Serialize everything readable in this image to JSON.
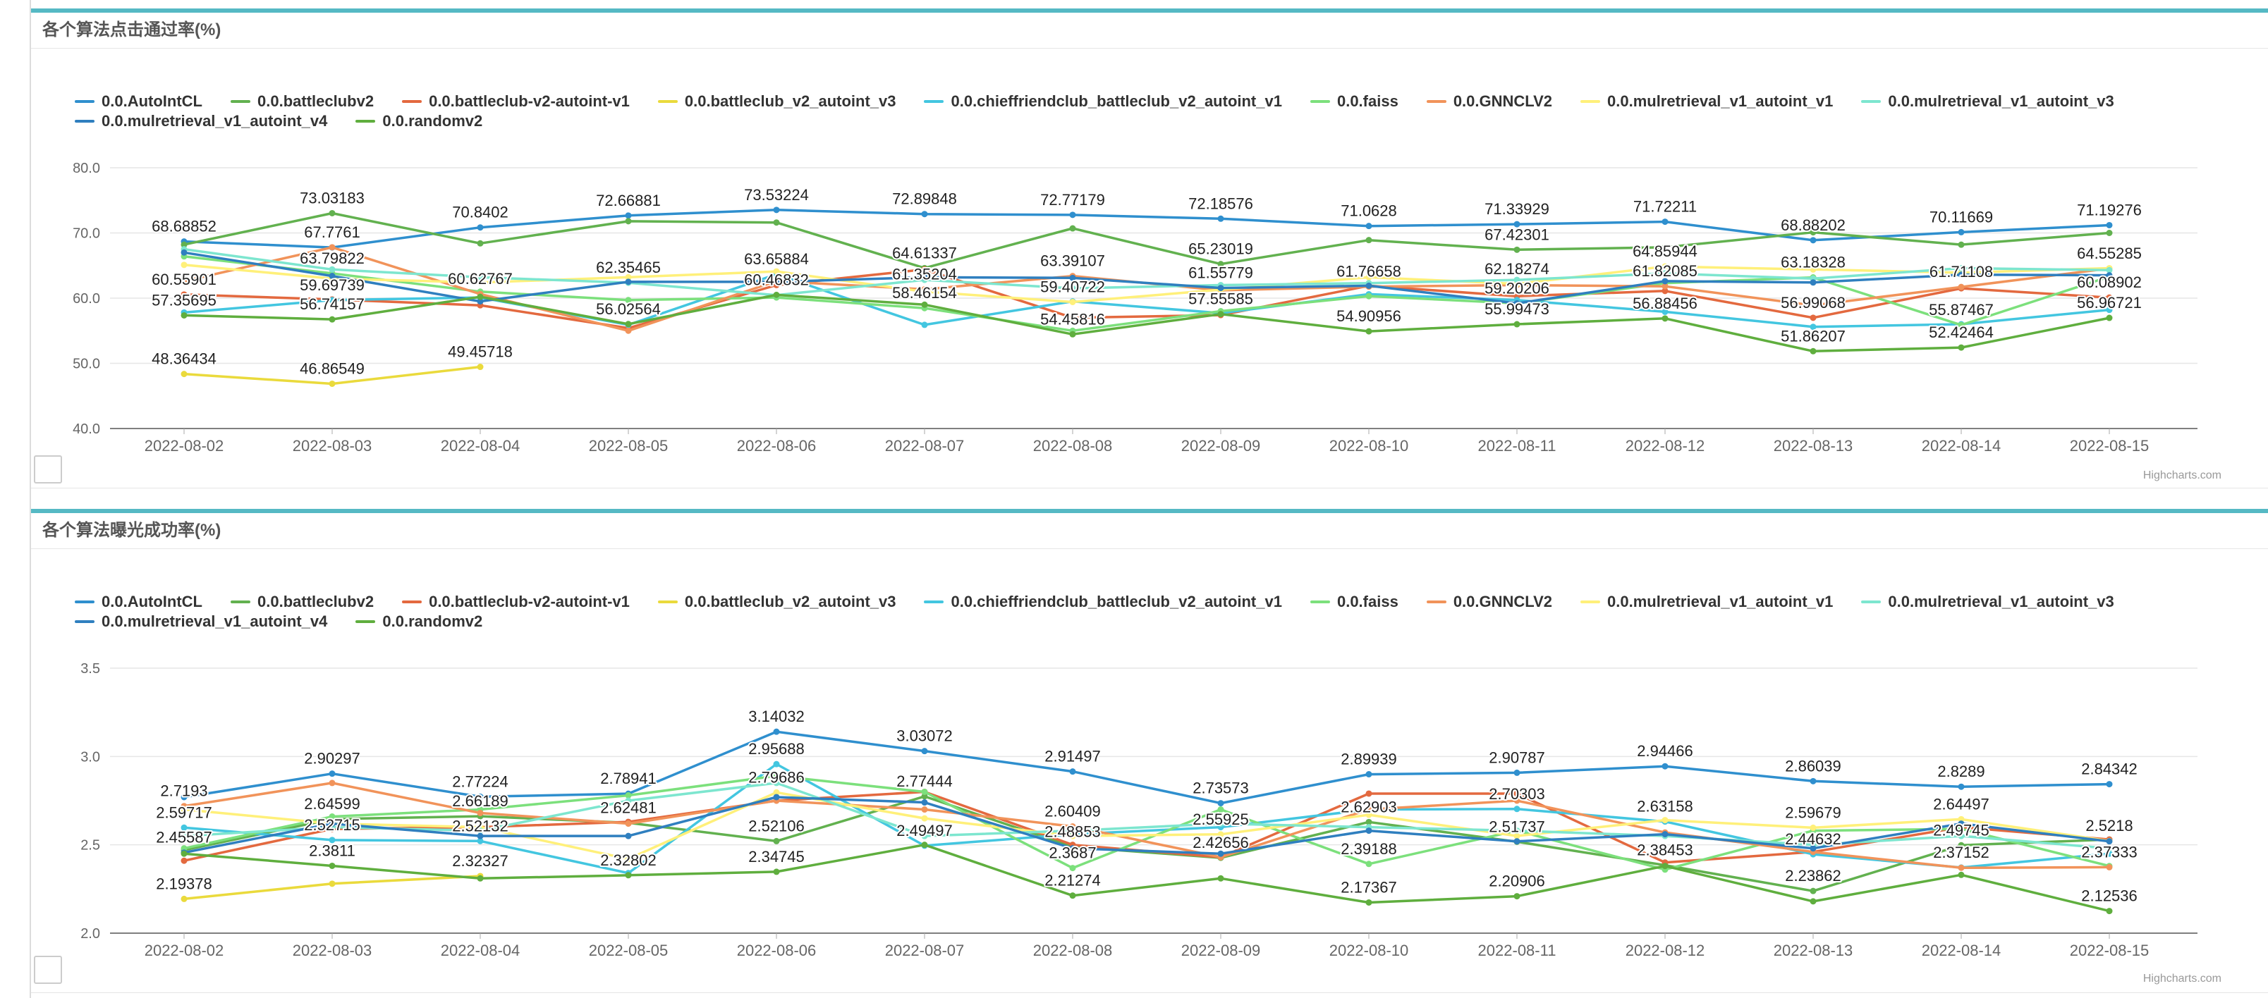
{
  "credit": "Highcharts.com",
  "series_colors": [
    "#2f8fce",
    "#62b14f",
    "#e3693f",
    "#eada3c",
    "#43c6e0",
    "#7ce07c",
    "#f1935a",
    "#fff07a",
    "#7de6cf",
    "#2f7fbf",
    "#5fae3e"
  ],
  "chart_data": [
    {
      "type": "line",
      "title": "各个算法点击通过率(%)",
      "xlabel": "",
      "ylabel": "",
      "categories": [
        "2022-08-02",
        "2022-08-03",
        "2022-08-04",
        "2022-08-05",
        "2022-08-06",
        "2022-08-07",
        "2022-08-08",
        "2022-08-09",
        "2022-08-10",
        "2022-08-11",
        "2022-08-12",
        "2022-08-13",
        "2022-08-14",
        "2022-08-15"
      ],
      "ylim": [
        40,
        80
      ],
      "yticks": [
        40,
        50,
        60,
        70,
        80
      ],
      "ytick_labels": [
        "40.0",
        "50.0",
        "60.0",
        "70.0",
        "80.0"
      ],
      "grid": true,
      "legend_position": "top-left",
      "series": [
        {
          "name": "0.0.AutoIntCL",
          "values": [
            68.68852,
            67.7761,
            70.8402,
            72.66881,
            73.53224,
            72.89848,
            72.77179,
            72.18576,
            71.0628,
            71.33929,
            71.72211,
            68.88202,
            70.11669,
            71.19276
          ]
        },
        {
          "name": "0.0.battleclubv2",
          "values": [
            68.2,
            73.03183,
            68.4,
            71.8,
            71.6,
            64.61337,
            70.7,
            65.23019,
            68.9,
            67.42301,
            67.8,
            70.1,
            68.2,
            70.0
          ]
        },
        {
          "name": "0.0.battleclub-v2-autoint-v1",
          "values": [
            60.55901,
            59.8,
            58.9,
            55.4,
            62.0,
            64.4,
            57.0,
            57.4,
            61.9,
            60.3,
            61.1,
            56.99068,
            61.5,
            60.08902
          ]
        },
        {
          "name": "0.0.battleclub_v2_autoint_v3",
          "values": [
            48.36434,
            46.86549,
            49.45718,
            null,
            null,
            null,
            null,
            null,
            null,
            null,
            null,
            null,
            null,
            null
          ]
        },
        {
          "name": "0.0.chieffriendclub_battleclub_v2_autoint_v1",
          "values": [
            57.8,
            59.69739,
            60.1,
            55.9,
            63.65884,
            55.9,
            59.5,
            57.7,
            60.6,
            59.7,
            57.9,
            55.6,
            56.0,
            58.2
          ]
        },
        {
          "name": "0.0.faiss",
          "values": [
            66.4,
            63.79822,
            61.0,
            59.7,
            60.1,
            58.46154,
            55.0,
            58.0,
            60.3,
            59.2,
            62.3,
            63.18328,
            55.87467,
            63.3
          ]
        },
        {
          "name": "0.0.GNNCLV2",
          "values": [
            62.6,
            67.8,
            60.62767,
            55.0,
            62.6,
            61.35204,
            63.39107,
            61.2,
            61.76658,
            62.0,
            61.82085,
            58.9,
            61.71108,
            64.55285
          ]
        },
        {
          "name": "0.0.mulretrieval_v1_autoint_v1",
          "values": [
            65.1,
            63.0,
            62.4,
            63.2,
            64.1,
            61.0,
            59.40722,
            61.3,
            63.2,
            62.18274,
            64.85944,
            64.4,
            63.9,
            64.6
          ]
        },
        {
          "name": "0.0.mulretrieval_v1_autoint_v3",
          "values": [
            67.5,
            64.4,
            63.2,
            62.35465,
            60.46832,
            62.8,
            61.5,
            62.0,
            62.3,
            62.8,
            63.8,
            63.0,
            64.6,
            64.3
          ]
        },
        {
          "name": "0.0.mulretrieval_v1_autoint_v4",
          "values": [
            67.0,
            63.4,
            59.5,
            62.5,
            62.5,
            63.2,
            63.1,
            61.55779,
            61.9,
            59.20206,
            62.6,
            62.4,
            63.6,
            63.5
          ]
        },
        {
          "name": "0.0.randomv2",
          "values": [
            57.35695,
            56.74157,
            60.2,
            56.02564,
            60.5,
            59.0,
            54.45816,
            57.55585,
            54.90956,
            55.99473,
            56.88456,
            51.86207,
            52.42464,
            56.96721
          ]
        }
      ],
      "data_labels": [
        {
          "text": "68.68852",
          "x": 0,
          "y": 68.68852
        },
        {
          "text": "60.55901",
          "x": 0,
          "y": 60.55901
        },
        {
          "text": "57.35695",
          "x": 0,
          "y": 57.35695
        },
        {
          "text": "48.36434",
          "x": 0,
          "y": 48.36434
        },
        {
          "text": "73.03183",
          "x": 1,
          "y": 73.03183
        },
        {
          "text": "67.7761",
          "x": 1,
          "y": 67.7761
        },
        {
          "text": "63.79822",
          "x": 1,
          "y": 63.79822
        },
        {
          "text": "59.69739",
          "x": 1,
          "y": 59.69739
        },
        {
          "text": "56.74157",
          "x": 1,
          "y": 56.74157
        },
        {
          "text": "46.86549",
          "x": 1,
          "y": 46.86549
        },
        {
          "text": "70.8402",
          "x": 2,
          "y": 70.8402
        },
        {
          "text": "60.62767",
          "x": 2,
          "y": 60.62767
        },
        {
          "text": "49.45718",
          "x": 2,
          "y": 49.45718
        },
        {
          "text": "72.66881",
          "x": 3,
          "y": 72.66881
        },
        {
          "text": "62.35465",
          "x": 3,
          "y": 62.35465
        },
        {
          "text": "56.02564",
          "x": 3,
          "y": 56.02564
        },
        {
          "text": "73.53224",
          "x": 4,
          "y": 73.53224
        },
        {
          "text": "63.65884",
          "x": 4,
          "y": 63.65884
        },
        {
          "text": "60.46832",
          "x": 4,
          "y": 60.46832
        },
        {
          "text": "72.89848",
          "x": 5,
          "y": 72.89848
        },
        {
          "text": "64.61337",
          "x": 5,
          "y": 64.61337
        },
        {
          "text": "61.35204",
          "x": 5,
          "y": 61.35204
        },
        {
          "text": "58.46154",
          "x": 5,
          "y": 58.46154
        },
        {
          "text": "72.77179",
          "x": 6,
          "y": 72.77179
        },
        {
          "text": "63.39107",
          "x": 6,
          "y": 63.39107
        },
        {
          "text": "59.40722",
          "x": 6,
          "y": 59.40722
        },
        {
          "text": "54.45816",
          "x": 6,
          "y": 54.45816
        },
        {
          "text": "72.18576",
          "x": 7,
          "y": 72.18576
        },
        {
          "text": "65.23019",
          "x": 7,
          "y": 65.23019
        },
        {
          "text": "61.55779",
          "x": 7,
          "y": 61.55779
        },
        {
          "text": "57.55585",
          "x": 7,
          "y": 57.55585
        },
        {
          "text": "71.0628",
          "x": 8,
          "y": 71.0628
        },
        {
          "text": "61.76658",
          "x": 8,
          "y": 61.76658
        },
        {
          "text": "54.90956",
          "x": 8,
          "y": 54.90956
        },
        {
          "text": "71.33929",
          "x": 9,
          "y": 71.33929
        },
        {
          "text": "67.42301",
          "x": 9,
          "y": 67.42301
        },
        {
          "text": "62.18274",
          "x": 9,
          "y": 62.18274
        },
        {
          "text": "59.20206",
          "x": 9,
          "y": 59.20206
        },
        {
          "text": "55.99473",
          "x": 9,
          "y": 55.99473
        },
        {
          "text": "71.72211",
          "x": 10,
          "y": 71.72211
        },
        {
          "text": "64.85944",
          "x": 10,
          "y": 64.85944
        },
        {
          "text": "61.82085",
          "x": 10,
          "y": 61.82085
        },
        {
          "text": "56.88456",
          "x": 10,
          "y": 56.88456
        },
        {
          "text": "68.88202",
          "x": 11,
          "y": 68.88202
        },
        {
          "text": "63.18328",
          "x": 11,
          "y": 63.18328
        },
        {
          "text": "56.99068",
          "x": 11,
          "y": 56.99068
        },
        {
          "text": "51.86207",
          "x": 11,
          "y": 51.86207
        },
        {
          "text": "70.11669",
          "x": 12,
          "y": 70.11669
        },
        {
          "text": "61.71108",
          "x": 12,
          "y": 61.71108
        },
        {
          "text": "55.87467",
          "x": 12,
          "y": 55.87467
        },
        {
          "text": "52.42464",
          "x": 12,
          "y": 52.42464
        },
        {
          "text": "71.19276",
          "x": 13,
          "y": 71.19276
        },
        {
          "text": "64.55285",
          "x": 13,
          "y": 64.55285
        },
        {
          "text": "60.08902",
          "x": 13,
          "y": 60.08902
        },
        {
          "text": "56.96721",
          "x": 13,
          "y": 56.96721
        }
      ]
    },
    {
      "type": "line",
      "title": "各个算法曝光成功率(%)",
      "xlabel": "",
      "ylabel": "",
      "categories": [
        "2022-08-02",
        "2022-08-03",
        "2022-08-04",
        "2022-08-05",
        "2022-08-06",
        "2022-08-07",
        "2022-08-08",
        "2022-08-09",
        "2022-08-10",
        "2022-08-11",
        "2022-08-12",
        "2022-08-13",
        "2022-08-14",
        "2022-08-15"
      ],
      "ylim": [
        2.0,
        3.5
      ],
      "yticks": [
        2.0,
        2.5,
        3.0,
        3.5
      ],
      "ytick_labels": [
        "2.0",
        "2.5",
        "3.0",
        "3.5"
      ],
      "grid": true,
      "legend_position": "top-left",
      "series": [
        {
          "name": "0.0.AutoIntCL",
          "values": [
            2.77,
            2.90297,
            2.77224,
            2.78941,
            3.14032,
            3.03072,
            2.91497,
            2.73573,
            2.89939,
            2.90787,
            2.94466,
            2.86039,
            2.8289,
            2.84342
          ]
        },
        {
          "name": "0.0.battleclubv2",
          "values": [
            2.47,
            2.64599,
            2.66189,
            2.62481,
            2.52106,
            2.77444,
            2.48853,
            2.42656,
            2.62903,
            2.51737,
            2.38453,
            2.23862,
            2.49745,
            2.53
          ]
        },
        {
          "name": "0.0.battleclub-v2-autoint-v1",
          "values": [
            2.41,
            2.59,
            2.6,
            2.63,
            2.75,
            2.8,
            2.5,
            2.43,
            2.79,
            2.79,
            2.4,
            2.46,
            2.6,
            2.53
          ]
        },
        {
          "name": "0.0.battleclub_v2_autoint_v3",
          "values": [
            2.19378,
            2.28,
            2.32327,
            null,
            null,
            null,
            null,
            null,
            null,
            null,
            null,
            null,
            null,
            null
          ]
        },
        {
          "name": "0.0.chieffriendclub_battleclub_v2_autoint_v1",
          "values": [
            2.59717,
            2.52715,
            2.52132,
            2.34,
            2.95688,
            2.49497,
            2.56,
            2.6,
            2.7,
            2.70303,
            2.63158,
            2.44632,
            2.37152,
            2.45
          ]
        },
        {
          "name": "0.0.faiss",
          "values": [
            2.48,
            2.66,
            2.7,
            2.78,
            2.89,
            2.8,
            2.3687,
            2.7,
            2.39188,
            2.58,
            2.36,
            2.58,
            2.59,
            2.38
          ]
        },
        {
          "name": "0.0.GNNCLV2",
          "values": [
            2.7193,
            2.85,
            2.68,
            2.62,
            2.75,
            2.7,
            2.60409,
            2.43,
            2.7,
            2.75,
            2.57,
            2.46,
            2.37,
            2.37333
          ]
        },
        {
          "name": "0.0.mulretrieval_v1_autoint_v1",
          "values": [
            2.7,
            2.62,
            2.6,
            2.42,
            2.79686,
            2.65,
            2.55,
            2.55925,
            2.67,
            2.55,
            2.64,
            2.59679,
            2.64497,
            2.5218
          ]
        },
        {
          "name": "0.0.mulretrieval_v1_autoint_v3",
          "values": [
            2.55,
            2.6,
            2.58,
            2.75,
            2.85,
            2.55,
            2.58,
            2.62,
            2.6,
            2.58,
            2.55,
            2.5,
            2.55,
            2.48
          ]
        },
        {
          "name": "0.0.mulretrieval_v1_autoint_v4",
          "values": [
            2.45587,
            2.62,
            2.55,
            2.55,
            2.77,
            2.74,
            2.48,
            2.45,
            2.58,
            2.52,
            2.56,
            2.48,
            2.62,
            2.52
          ]
        },
        {
          "name": "0.0.randomv2",
          "values": [
            2.45,
            2.3811,
            2.31,
            2.32802,
            2.34745,
            2.5,
            2.21274,
            2.31,
            2.17367,
            2.20906,
            2.38,
            2.18,
            2.33,
            2.12536
          ]
        }
      ],
      "data_labels": [
        {
          "text": "2.7193",
          "x": 0,
          "y": 2.7193
        },
        {
          "text": "2.59717",
          "x": 0,
          "y": 2.59717
        },
        {
          "text": "2.45587",
          "x": 0,
          "y": 2.45587
        },
        {
          "text": "2.19378",
          "x": 0,
          "y": 2.19378
        },
        {
          "text": "2.90297",
          "x": 1,
          "y": 2.90297
        },
        {
          "text": "2.64599",
          "x": 1,
          "y": 2.64599
        },
        {
          "text": "2.52715",
          "x": 1,
          "y": 2.52715
        },
        {
          "text": "2.3811",
          "x": 1,
          "y": 2.3811
        },
        {
          "text": "2.77224",
          "x": 2,
          "y": 2.77224
        },
        {
          "text": "2.66189",
          "x": 2,
          "y": 2.66189
        },
        {
          "text": "2.52132",
          "x": 2,
          "y": 2.52132
        },
        {
          "text": "2.32327",
          "x": 2,
          "y": 2.32327
        },
        {
          "text": "2.78941",
          "x": 3,
          "y": 2.78941
        },
        {
          "text": "2.62481",
          "x": 3,
          "y": 2.62481
        },
        {
          "text": "2.32802",
          "x": 3,
          "y": 2.32802
        },
        {
          "text": "3.14032",
          "x": 4,
          "y": 3.14032
        },
        {
          "text": "2.95688",
          "x": 4,
          "y": 2.95688
        },
        {
          "text": "2.79686",
          "x": 4,
          "y": 2.79686
        },
        {
          "text": "2.52106",
          "x": 4,
          "y": 2.52106
        },
        {
          "text": "2.34745",
          "x": 4,
          "y": 2.34745
        },
        {
          "text": "3.03072",
          "x": 5,
          "y": 3.03072
        },
        {
          "text": "2.77444",
          "x": 5,
          "y": 2.77444
        },
        {
          "text": "2.49497",
          "x": 5,
          "y": 2.49497
        },
        {
          "text": "2.91497",
          "x": 6,
          "y": 2.91497
        },
        {
          "text": "2.60409",
          "x": 6,
          "y": 2.60409
        },
        {
          "text": "2.48853",
          "x": 6,
          "y": 2.48853
        },
        {
          "text": "2.3687",
          "x": 6,
          "y": 2.3687
        },
        {
          "text": "2.21274",
          "x": 6,
          "y": 2.21274
        },
        {
          "text": "2.73573",
          "x": 7,
          "y": 2.73573
        },
        {
          "text": "2.55925",
          "x": 7,
          "y": 2.55925
        },
        {
          "text": "2.42656",
          "x": 7,
          "y": 2.42656
        },
        {
          "text": "2.89939",
          "x": 8,
          "y": 2.89939
        },
        {
          "text": "2.62903",
          "x": 8,
          "y": 2.62903
        },
        {
          "text": "2.39188",
          "x": 8,
          "y": 2.39188
        },
        {
          "text": "2.17367",
          "x": 8,
          "y": 2.17367
        },
        {
          "text": "2.90787",
          "x": 9,
          "y": 2.90787
        },
        {
          "text": "2.70303",
          "x": 9,
          "y": 2.70303
        },
        {
          "text": "2.51737",
          "x": 9,
          "y": 2.51737
        },
        {
          "text": "2.20906",
          "x": 9,
          "y": 2.20906
        },
        {
          "text": "2.94466",
          "x": 10,
          "y": 2.94466
        },
        {
          "text": "2.63158",
          "x": 10,
          "y": 2.63158
        },
        {
          "text": "2.38453",
          "x": 10,
          "y": 2.38453
        },
        {
          "text": "2.86039",
          "x": 11,
          "y": 2.86039
        },
        {
          "text": "2.59679",
          "x": 11,
          "y": 2.59679
        },
        {
          "text": "2.44632",
          "x": 11,
          "y": 2.44632
        },
        {
          "text": "2.23862",
          "x": 11,
          "y": 2.23862
        },
        {
          "text": "2.8289",
          "x": 12,
          "y": 2.8289
        },
        {
          "text": "2.64497",
          "x": 12,
          "y": 2.64497
        },
        {
          "text": "2.49745",
          "x": 12,
          "y": 2.49745
        },
        {
          "text": "2.37152",
          "x": 12,
          "y": 2.37152
        },
        {
          "text": "2.84342",
          "x": 13,
          "y": 2.84342
        },
        {
          "text": "2.5218",
          "x": 13,
          "y": 2.5218
        },
        {
          "text": "2.37333",
          "x": 13,
          "y": 2.37333
        },
        {
          "text": "2.12536",
          "x": 13,
          "y": 2.12536
        }
      ]
    }
  ]
}
